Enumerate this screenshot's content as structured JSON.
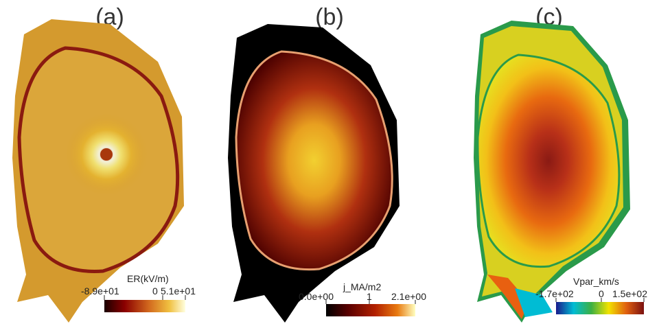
{
  "panels": [
    {
      "label": "(a)",
      "colorbar": {
        "title": "ER(kV/m)",
        "ticks": [
          "-8.9e+01",
          "0",
          "5.1e+01"
        ],
        "colors": [
          "#1a0000",
          "#8b0000",
          "#d2691e",
          "#f0c040",
          "#ffffe0"
        ]
      }
    },
    {
      "label": "(b)",
      "colorbar": {
        "title": "j_MA/m2",
        "ticks": [
          "0.0e+00",
          "1",
          "2.1e+00"
        ],
        "colors": [
          "#000000",
          "#5a0000",
          "#b22000",
          "#e87a10",
          "#ffffc0"
        ]
      }
    },
    {
      "label": "(c)",
      "colorbar": {
        "title": "Vpar_km/s",
        "ticks": [
          "-1.7e+02",
          "0",
          "1.5e+02"
        ],
        "colors": [
          "#1a1a8c",
          "#00bcd4",
          "#3cb043",
          "#f2e200",
          "#e06010",
          "#7a1010"
        ]
      }
    }
  ]
}
